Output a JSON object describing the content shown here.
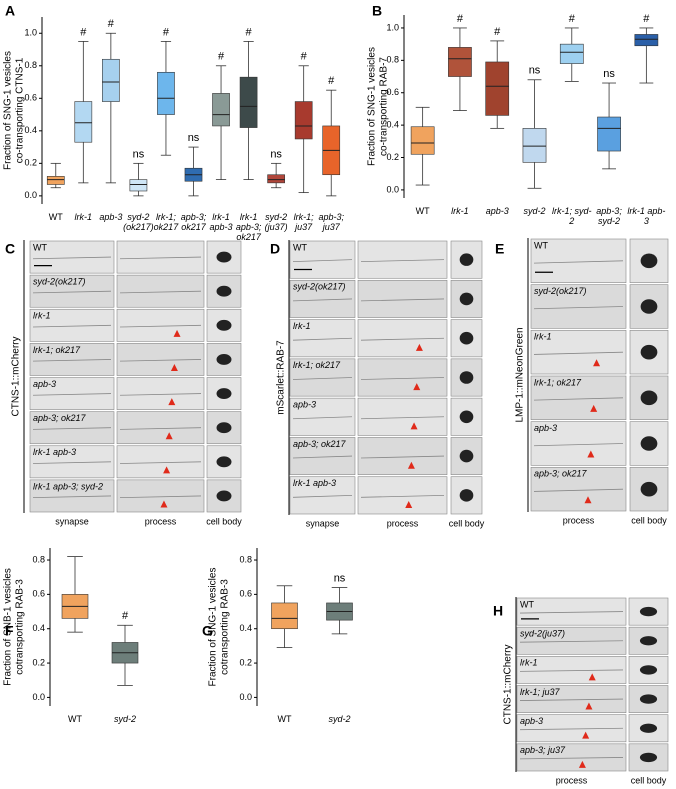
{
  "chart_data": [
    {
      "type": "box",
      "panel_label": "A",
      "y_label": [
        "Fraction of SNG-1 vesicles",
        "co-transporting CTNS-1"
      ],
      "categories": [
        "WT",
        "lrk-1",
        "apb-3",
        "syd-2 (ok217)",
        "lrk-1; ok217",
        "apb-3; ok217",
        "lrk-1 apb-3",
        "lrk-1 apb-3; ok217",
        "syd-2 (ju37)",
        "lrk-1; ju37",
        "apb-3; ju37"
      ],
      "boxes": [
        {
          "color": "#f0a35e",
          "min": 0.05,
          "q1": 0.07,
          "median": 0.1,
          "q3": 0.12,
          "max": 0.2
        },
        {
          "color": "#b3d8f2",
          "min": 0.08,
          "q1": 0.33,
          "median": 0.45,
          "q3": 0.58,
          "max": 0.95
        },
        {
          "color": "#a6d0ee",
          "min": 0.08,
          "q1": 0.58,
          "median": 0.7,
          "q3": 0.84,
          "max": 1.0
        },
        {
          "color": "#cfe6f6",
          "min": 0.0,
          "q1": 0.03,
          "median": 0.07,
          "q3": 0.1,
          "max": 0.2
        },
        {
          "color": "#6db6ec",
          "min": 0.25,
          "q1": 0.5,
          "median": 0.6,
          "q3": 0.76,
          "max": 0.95
        },
        {
          "color": "#2f6cb0",
          "min": 0.0,
          "q1": 0.09,
          "median": 0.13,
          "q3": 0.17,
          "max": 0.3
        },
        {
          "color": "#8a9a96",
          "min": 0.1,
          "q1": 0.43,
          "median": 0.5,
          "q3": 0.63,
          "max": 0.8
        },
        {
          "color": "#3d4a4a",
          "min": 0.1,
          "q1": 0.42,
          "median": 0.55,
          "q3": 0.73,
          "max": 0.95
        },
        {
          "color": "#b0463a",
          "min": 0.05,
          "q1": 0.08,
          "median": 0.1,
          "q3": 0.13,
          "max": 0.2
        },
        {
          "color": "#a83a2e",
          "min": 0.02,
          "q1": 0.35,
          "median": 0.43,
          "q3": 0.58,
          "max": 0.8
        },
        {
          "color": "#e8642a",
          "min": 0.0,
          "q1": 0.13,
          "median": 0.28,
          "q3": 0.43,
          "max": 0.65
        }
      ],
      "annotations": [
        null,
        "#",
        "#",
        "ns",
        "#",
        "ns",
        "#",
        "#",
        "ns",
        "#",
        "#"
      ],
      "ylim": [
        -0.05,
        1.1
      ],
      "yticks": [
        {
          "value": 0,
          "label": "0.0"
        },
        0.2,
        0.4,
        0.6,
        0.8,
        {
          "value": 1,
          "label": "1.0"
        }
      ]
    },
    {
      "type": "box",
      "panel_label": "B",
      "y_label": [
        "Fraction of SNG-1 vesicles",
        "co-transporting RAB-7"
      ],
      "categories": [
        "WT",
        "lrk-1",
        "apb-3",
        "syd-2",
        "lrk-1; syd-2",
        "apb-3; syd-2",
        "lrk-1 apb-3"
      ],
      "boxes": [
        {
          "color": "#f0a35e",
          "min": 0.03,
          "q1": 0.22,
          "median": 0.29,
          "q3": 0.39,
          "max": 0.51
        },
        {
          "color": "#b0533a",
          "min": 0.49,
          "q1": 0.7,
          "median": 0.81,
          "q3": 0.88,
          "max": 1.0
        },
        {
          "color": "#a0432e",
          "min": 0.38,
          "q1": 0.46,
          "median": 0.64,
          "q3": 0.79,
          "max": 0.92
        },
        {
          "color": "#c0d8ee",
          "min": 0.01,
          "q1": 0.17,
          "median": 0.27,
          "q3": 0.38,
          "max": 0.68
        },
        {
          "color": "#9dd0f0",
          "min": 0.67,
          "q1": 0.78,
          "median": 0.85,
          "q3": 0.9,
          "max": 1.0
        },
        {
          "color": "#5aa0e0",
          "min": 0.13,
          "q1": 0.24,
          "median": 0.38,
          "q3": 0.45,
          "max": 0.66
        },
        {
          "color": "#2a5fa8",
          "min": 0.66,
          "q1": 0.89,
          "median": 0.93,
          "q3": 0.96,
          "max": 1.0
        }
      ],
      "annotations": [
        null,
        "#",
        "#",
        "ns",
        "#",
        "ns",
        "#"
      ],
      "ylim": [
        -0.05,
        1.08
      ],
      "yticks": [
        {
          "value": 0,
          "label": "0.0"
        },
        0.2,
        0.4,
        0.6,
        0.8,
        {
          "value": 1,
          "label": "1.0"
        }
      ]
    },
    {
      "type": "box",
      "panel_label": "F",
      "y_label": [
        "Fraction of SNB-1 vesicles",
        "cotransporting RAB-3"
      ],
      "categories": [
        "WT",
        "syd-2"
      ],
      "boxes": [
        {
          "color": "#f0a35e",
          "min": 0.38,
          "q1": 0.46,
          "median": 0.53,
          "q3": 0.6,
          "max": 0.82
        },
        {
          "color": "#6d7e7a",
          "min": 0.07,
          "q1": 0.2,
          "median": 0.26,
          "q3": 0.32,
          "max": 0.42
        }
      ],
      "annotations": [
        null,
        "#"
      ],
      "ylim": [
        -0.05,
        0.87
      ],
      "yticks": [
        {
          "value": 0,
          "label": "0.0"
        },
        0.2,
        0.4,
        0.6,
        0.8
      ]
    },
    {
      "type": "box",
      "panel_label": "G",
      "y_label": [
        "Fraction of SNG-1 vesicles",
        "cotransporting RAB-3"
      ],
      "categories": [
        "WT",
        "syd-2"
      ],
      "boxes": [
        {
          "color": "#f0a35e",
          "min": 0.29,
          "q1": 0.4,
          "median": 0.46,
          "q3": 0.55,
          "max": 0.65
        },
        {
          "color": "#6d7e7a",
          "min": 0.37,
          "q1": 0.45,
          "median": 0.5,
          "q3": 0.55,
          "max": 0.64
        }
      ],
      "annotations": [
        null,
        "ns"
      ],
      "ylim": [
        -0.05,
        0.87
      ],
      "yticks": [
        {
          "value": 0,
          "label": "0.0"
        },
        0.2,
        0.4,
        0.6,
        0.8
      ]
    }
  ],
  "micrographs": [
    {
      "panel_label": "C",
      "channel_label": "CTNS-1::mCherry",
      "rows": [
        "WT",
        "syd-2(ok217)",
        "lrk-1",
        "lrk-1; ok217",
        "apb-3",
        "apb-3; ok217",
        "lrk-1 apb-3",
        "lrk-1 apb-3; syd-2"
      ],
      "columns": [
        "synapse",
        "process",
        "cell body"
      ]
    },
    {
      "panel_label": "D",
      "channel_label": "mScarlet::RAB-7",
      "rows": [
        "WT",
        "syd-2(ok217)",
        "lrk-1",
        "lrk-1; ok217",
        "apb-3",
        "apb-3; ok217",
        "lrk-1 apb-3"
      ],
      "columns": [
        "synapse",
        "process",
        "cell body"
      ]
    },
    {
      "panel_label": "E",
      "channel_label": "LMP-1::mNeonGreen",
      "rows": [
        "WT",
        "syd-2(ok217)",
        "lrk-1",
        "lrk-1; ok217",
        "apb-3",
        "apb-3; ok217"
      ],
      "columns": [
        "process",
        "cell body"
      ]
    },
    {
      "panel_label": "H",
      "channel_label": "CTNS-1::mCherry",
      "rows": [
        "WT",
        "syd-2(ju37)",
        "lrk-1",
        "lrk-1; ju37",
        "apb-3",
        "apb-3; ju37"
      ],
      "columns": [
        "process",
        "cell body"
      ]
    }
  ]
}
